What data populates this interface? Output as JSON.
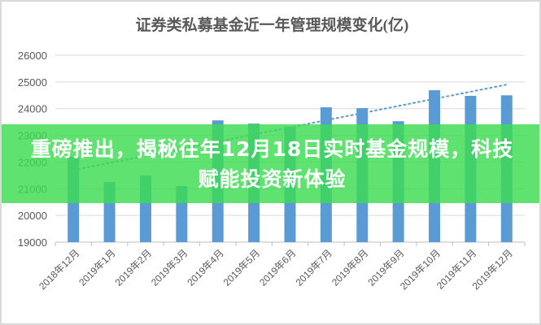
{
  "chart_data": {
    "type": "bar",
    "title": "证券类私募基金近一年管理规模变化(亿)",
    "categories": [
      "2018年12月",
      "2019年1月",
      "2019年2月",
      "2019年3月",
      "2019年4月",
      "2019年5月",
      "2019年6月",
      "2019年7月",
      "2019年8月",
      "2019年9月",
      "2019年10月",
      "2019年11月",
      "2019年12月"
    ],
    "values": [
      22200,
      21250,
      21500,
      21100,
      23560,
      23440,
      23320,
      24050,
      24020,
      23530,
      24690,
      24480,
      24500
    ],
    "trendline": {
      "type": "linear",
      "start": 21700,
      "end": 24900,
      "style": "dotted"
    },
    "ylim": [
      19000,
      26000
    ],
    "yticks": [
      19000,
      20000,
      21000,
      22000,
      23000,
      24000,
      25000,
      26000
    ],
    "grid": true,
    "bar_color": "#5b9bd5",
    "legend": "none"
  },
  "banner": {
    "text": "重磅推出，揭秘往年12月18日实时基金规模，科技赋能投资新体验",
    "color": "#3cdc50"
  }
}
